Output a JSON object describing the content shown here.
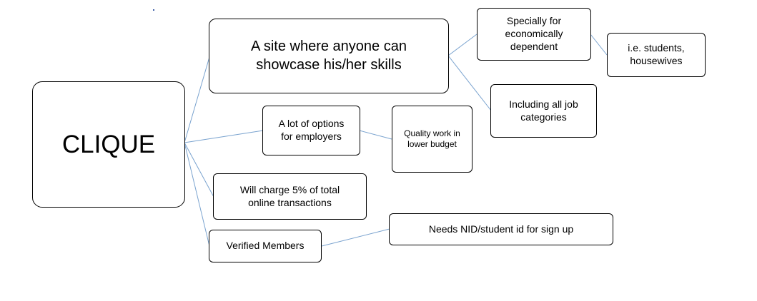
{
  "diagram": {
    "connector_color": "#7aa3cf",
    "nodes": {
      "root": "CLIQUE",
      "showcase": "A site where anyone can\nshowcase his/her skills",
      "econ": "Specially for\neconomically\ndependent",
      "students": "i.e. students,\nhousewives",
      "jobs": "Including all job\ncategories",
      "options": "A lot of options\nfor employers",
      "quality": "Quality work in\nlower budget",
      "charge": "Will charge 5% of total\nonline transactions",
      "verified": "Verified Members",
      "nid": "Needs NID/student id for sign up"
    }
  }
}
